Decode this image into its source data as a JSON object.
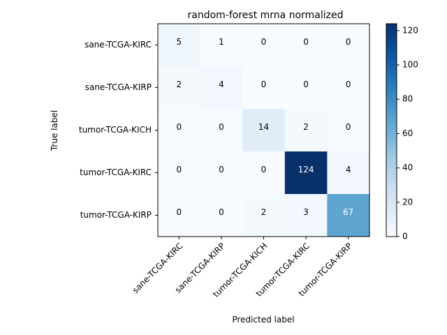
{
  "chart_data": {
    "type": "heatmap",
    "title": "random-forest mrna normalized",
    "xlabel": "Predicted label",
    "ylabel": "True label",
    "row_labels": [
      "sane-TCGA-KIRC",
      "sane-TCGA-KIRP",
      "tumor-TCGA-KICH",
      "tumor-TCGA-KIRC",
      "tumor-TCGA-KIRP"
    ],
    "col_labels": [
      "sane-TCGA-KIRC",
      "sane-TCGA-KIRP",
      "tumor-TCGA-KICH",
      "tumor-TCGA-KIRC",
      "tumor-TCGA-KIRP"
    ],
    "values": [
      [
        5,
        1,
        0,
        0,
        0
      ],
      [
        2,
        4,
        0,
        0,
        0
      ],
      [
        0,
        0,
        14,
        2,
        0
      ],
      [
        0,
        0,
        0,
        124,
        4
      ],
      [
        0,
        0,
        2,
        3,
        67
      ]
    ],
    "colormap": "Blues",
    "colorbar": {
      "min": 0,
      "max": 124,
      "ticks": [
        0,
        20,
        40,
        60,
        80,
        100,
        120
      ]
    }
  }
}
